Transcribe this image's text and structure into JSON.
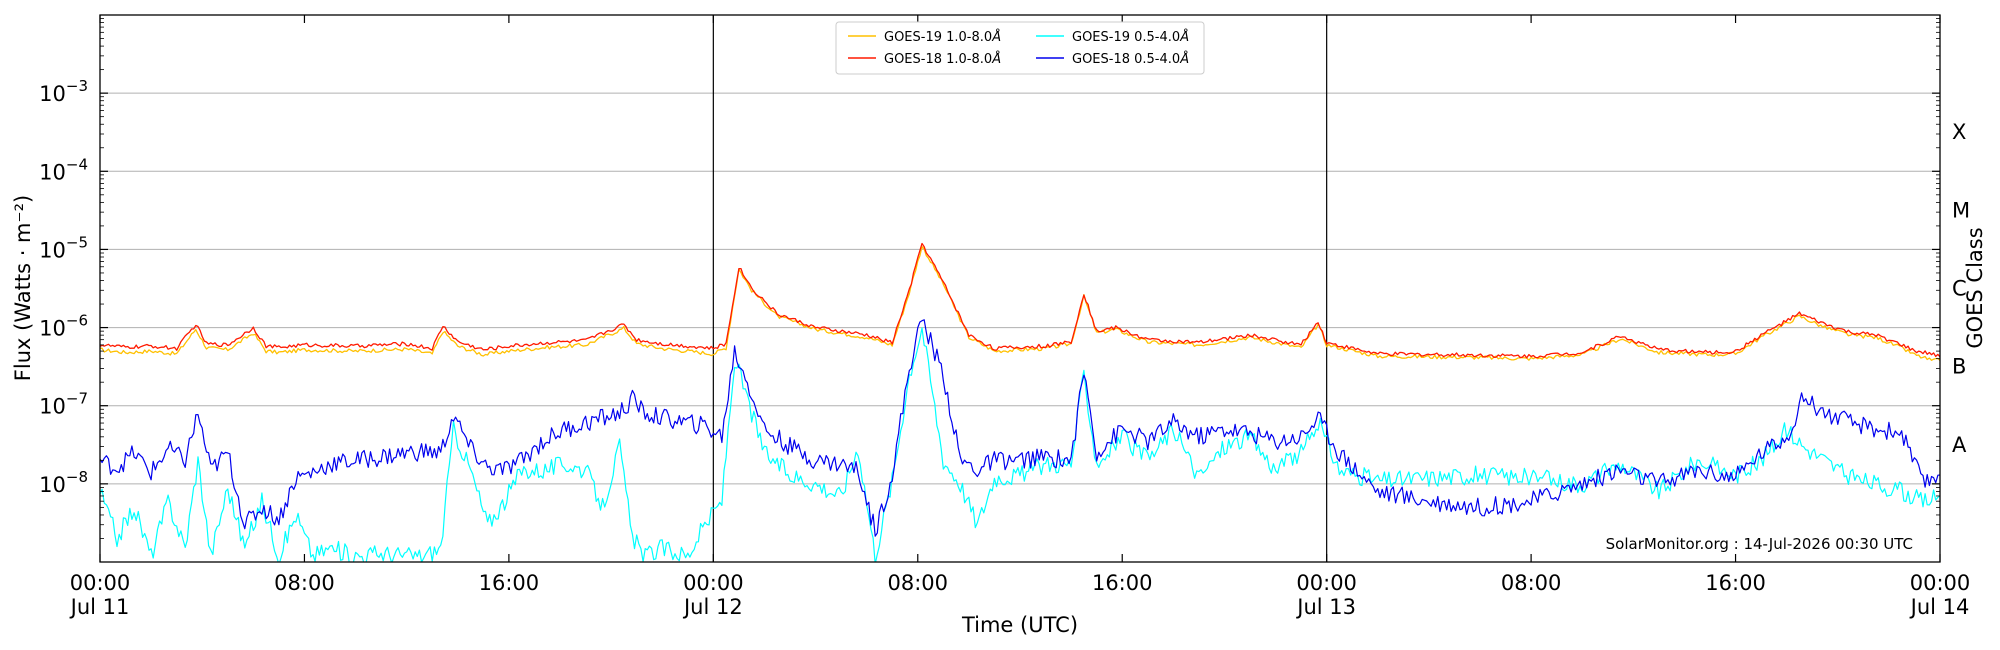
{
  "chart_data": {
    "type": "line",
    "title": "",
    "xlabel": "Time (UTC)",
    "ylabel": "Flux (Watts · m⁻²)",
    "ylabel_right": "GOES Class",
    "yscale": "log",
    "xlim": [
      "2026-07-11 00:00",
      "2026-07-14 00:00"
    ],
    "ylim": [
      1e-09,
      0.01
    ],
    "grid": "horizontal",
    "legend_position": "top-center",
    "annotation": "SolarMonitor.org : 14-Jul-2026 00:30 UTC",
    "y_ticks": [
      {
        "value": 1e-08,
        "mantissa": "10",
        "exp": "−8"
      },
      {
        "value": 1e-07,
        "mantissa": "10",
        "exp": "−7"
      },
      {
        "value": 1e-06,
        "mantissa": "10",
        "exp": "−6"
      },
      {
        "value": 1e-05,
        "mantissa": "10",
        "exp": "−5"
      },
      {
        "value": 0.0001,
        "mantissa": "10",
        "exp": "−4"
      },
      {
        "value": 0.001,
        "mantissa": "10",
        "exp": "−3"
      }
    ],
    "x_ticks": [
      {
        "value": "2026-07-11 00:00",
        "label": "00:00",
        "sublabel": "Jul 11"
      },
      {
        "value": "2026-07-11 08:00",
        "label": "08:00",
        "sublabel": ""
      },
      {
        "value": "2026-07-11 16:00",
        "label": "16:00",
        "sublabel": ""
      },
      {
        "value": "2026-07-12 00:00",
        "label": "00:00",
        "sublabel": "Jul 12"
      },
      {
        "value": "2026-07-12 08:00",
        "label": "08:00",
        "sublabel": ""
      },
      {
        "value": "2026-07-12 16:00",
        "label": "16:00",
        "sublabel": ""
      },
      {
        "value": "2026-07-13 00:00",
        "label": "00:00",
        "sublabel": "Jul 13"
      },
      {
        "value": "2026-07-13 08:00",
        "label": "08:00",
        "sublabel": ""
      },
      {
        "value": "2026-07-13 16:00",
        "label": "16:00",
        "sublabel": ""
      },
      {
        "value": "2026-07-14 00:00",
        "label": "00:00",
        "sublabel": "Jul 14"
      }
    ],
    "day_lines": [
      "2026-07-12 00:00",
      "2026-07-13 00:00"
    ],
    "goes_classes": [
      {
        "label": "A",
        "min": 1e-08
      },
      {
        "label": "B",
        "min": 1e-07
      },
      {
        "label": "C",
        "min": 1e-06
      },
      {
        "label": "M",
        "min": 1e-05
      },
      {
        "label": "X",
        "min": 0.0001
      }
    ],
    "series": [
      {
        "name": "GOES-19 1.0-8.0",
        "suffix": "Å",
        "color": "#ffc000",
        "x": [
          "2026-07-11 00:00",
          "2026-07-11 01:00",
          "2026-07-11 02:00",
          "2026-07-11 03:00",
          "2026-07-11 03:45",
          "2026-07-11 04:10",
          "2026-07-11 05:00",
          "2026-07-11 06:00",
          "2026-07-11 06:30",
          "2026-07-11 07:00",
          "2026-07-11 08:00",
          "2026-07-11 10:00",
          "2026-07-11 12:00",
          "2026-07-11 13:00",
          "2026-07-11 13:25",
          "2026-07-11 14:00",
          "2026-07-11 15:00",
          "2026-07-11 16:00",
          "2026-07-11 17:30",
          "2026-07-11 19:00",
          "2026-07-11 20:30",
          "2026-07-11 21:00",
          "2026-07-11 22:00",
          "2026-07-11 23:00",
          "2026-07-12 00:00",
          "2026-07-12 00:30",
          "2026-07-12 01:00",
          "2026-07-12 01:30",
          "2026-07-12 02:30",
          "2026-07-12 04:00",
          "2026-07-12 06:00",
          "2026-07-12 07:00",
          "2026-07-12 07:40",
          "2026-07-12 08:10",
          "2026-07-12 09:00",
          "2026-07-12 10:00",
          "2026-07-12 11:00",
          "2026-07-12 13:00",
          "2026-07-12 14:00",
          "2026-07-12 14:30",
          "2026-07-12 15:00",
          "2026-07-12 15:45",
          "2026-07-12 17:00",
          "2026-07-12 19:00",
          "2026-07-12 21:00",
          "2026-07-12 23:00",
          "2026-07-12 23:40",
          "2026-07-13 00:00",
          "2026-07-13 02:00",
          "2026-07-13 05:00",
          "2026-07-13 08:00",
          "2026-07-13 10:00",
          "2026-07-13 11:30",
          "2026-07-13 13:00",
          "2026-07-13 15:00",
          "2026-07-13 16:00",
          "2026-07-13 17:00",
          "2026-07-13 18:30",
          "2026-07-13 19:30",
          "2026-07-13 20:30",
          "2026-07-13 21:30",
          "2026-07-13 22:30",
          "2026-07-13 23:00",
          "2026-07-13 23:40",
          "2026-07-14 00:00"
        ],
        "y": [
          5.2e-07,
          4.8e-07,
          5e-07,
          4.6e-07,
          9.5e-07,
          5.5e-07,
          5.2e-07,
          8.5e-07,
          5e-07,
          4.8e-07,
          5.2e-07,
          5e-07,
          5.3e-07,
          4.6e-07,
          9e-07,
          5.8e-07,
          4.5e-07,
          5e-07,
          5.6e-07,
          6e-07,
          9.8e-07,
          6.2e-07,
          5.4e-07,
          5e-07,
          4.6e-07,
          5.5e-07,
          5.6e-06,
          3e-06,
          1.4e-06,
          9.5e-07,
          7.5e-07,
          6e-07,
          2.8e-06,
          1.1e-05,
          3.6e-06,
          7.5e-07,
          5e-07,
          5.4e-07,
          6.2e-07,
          2.5e-06,
          8.5e-07,
          9.5e-07,
          6.5e-07,
          6e-07,
          7.5e-07,
          5.5e-07,
          1.1e-06,
          6e-07,
          4.3e-07,
          4.2e-07,
          4e-07,
          4.5e-07,
          7.2e-07,
          4.8e-07,
          4.5e-07,
          4.6e-07,
          7.5e-07,
          1.4e-06,
          1e-06,
          8e-07,
          7.5e-07,
          5.5e-07,
          4.5e-07,
          3.8e-07,
          3.8e-07
        ]
      },
      {
        "name": "GOES-18 1.0-8.0",
        "suffix": "Å",
        "color": "#ff1a00",
        "x": [
          "2026-07-11 00:00",
          "2026-07-11 01:00",
          "2026-07-11 02:00",
          "2026-07-11 03:00",
          "2026-07-11 03:45",
          "2026-07-11 04:10",
          "2026-07-11 05:00",
          "2026-07-11 06:00",
          "2026-07-11 06:30",
          "2026-07-11 07:00",
          "2026-07-11 08:00",
          "2026-07-11 10:00",
          "2026-07-11 12:00",
          "2026-07-11 13:00",
          "2026-07-11 13:25",
          "2026-07-11 14:00",
          "2026-07-11 15:00",
          "2026-07-11 16:00",
          "2026-07-11 17:30",
          "2026-07-11 19:00",
          "2026-07-11 20:30",
          "2026-07-11 21:00",
          "2026-07-11 22:00",
          "2026-07-11 23:00",
          "2026-07-12 00:00",
          "2026-07-12 00:30",
          "2026-07-12 01:00",
          "2026-07-12 01:30",
          "2026-07-12 02:30",
          "2026-07-12 04:00",
          "2026-07-12 06:00",
          "2026-07-12 07:00",
          "2026-07-12 07:40",
          "2026-07-12 08:10",
          "2026-07-12 09:00",
          "2026-07-12 10:00",
          "2026-07-12 11:00",
          "2026-07-12 13:00",
          "2026-07-12 14:00",
          "2026-07-12 14:30",
          "2026-07-12 15:00",
          "2026-07-12 15:45",
          "2026-07-12 17:00",
          "2026-07-12 19:00",
          "2026-07-12 21:00",
          "2026-07-12 23:00",
          "2026-07-12 23:40",
          "2026-07-13 00:00",
          "2026-07-13 02:00",
          "2026-07-13 05:00",
          "2026-07-13 08:00",
          "2026-07-13 10:00",
          "2026-07-13 11:30",
          "2026-07-13 13:00",
          "2026-07-13 15:00",
          "2026-07-13 16:00",
          "2026-07-13 17:00",
          "2026-07-13 18:30",
          "2026-07-13 19:30",
          "2026-07-13 20:30",
          "2026-07-13 21:30",
          "2026-07-13 22:30",
          "2026-07-13 23:00",
          "2026-07-13 23:40",
          "2026-07-14 00:00"
        ],
        "y": [
          6e-07,
          5.6e-07,
          5.8e-07,
          5.4e-07,
          1.1e-06,
          6.2e-07,
          6e-07,
          1e-06,
          5.8e-07,
          5.6e-07,
          6e-07,
          5.8e-07,
          6.2e-07,
          5.4e-07,
          1.05e-06,
          6.6e-07,
          5.2e-07,
          5.8e-07,
          6.4e-07,
          6.8e-07,
          1.1e-06,
          7e-07,
          6.2e-07,
          5.8e-07,
          5.4e-07,
          6.2e-07,
          6e-06,
          3.2e-06,
          1.5e-06,
          1e-06,
          8e-07,
          6.4e-07,
          3e-06,
          1.2e-05,
          3.8e-06,
          8e-07,
          5.4e-07,
          5.8e-07,
          6.6e-07,
          2.7e-06,
          9e-07,
          1e-06,
          7e-07,
          6.4e-07,
          8e-07,
          6e-07,
          1.2e-06,
          6.4e-07,
          4.6e-07,
          4.5e-07,
          4.3e-07,
          4.8e-07,
          7.8e-07,
          5.2e-07,
          4.8e-07,
          4.9e-07,
          8e-07,
          1.5e-06,
          1.1e-06,
          8.6e-07,
          8e-07,
          6e-07,
          5e-07,
          4.6e-07,
          4.2e-07
        ]
      },
      {
        "name": "GOES-19 0.5-4.0",
        "suffix": "Å",
        "color": "#00ffff",
        "x": [
          "2026-07-11 00:00",
          "2026-07-11 00:40",
          "2026-07-11 01:20",
          "2026-07-11 02:00",
          "2026-07-11 02:40",
          "2026-07-11 03:20",
          "2026-07-11 03:50",
          "2026-07-11 04:20",
          "2026-07-11 05:00",
          "2026-07-11 05:40",
          "2026-07-11 06:20",
          "2026-07-11 07:00",
          "2026-07-11 07:40",
          "2026-07-11 08:20",
          "2026-07-11 09:00",
          "2026-07-11 10:00",
          "2026-07-11 11:00",
          "2026-07-11 12:00",
          "2026-07-11 12:40",
          "2026-07-11 13:20",
          "2026-07-11 13:50",
          "2026-07-11 14:30",
          "2026-07-11 15:10",
          "2026-07-11 15:50",
          "2026-07-11 16:30",
          "2026-07-11 17:20",
          "2026-07-11 18:10",
          "2026-07-11 19:00",
          "2026-07-11 19:40",
          "2026-07-11 20:20",
          "2026-07-11 20:50",
          "2026-07-11 21:20",
          "2026-07-11 22:00",
          "2026-07-11 23:00",
          "2026-07-11 23:40",
          "2026-07-12 00:20",
          "2026-07-12 00:50",
          "2026-07-12 01:20",
          "2026-07-12 02:00",
          "2026-07-12 03:00",
          "2026-07-12 04:00",
          "2026-07-12 05:00",
          "2026-07-12 05:40",
          "2026-07-12 06:20",
          "2026-07-12 07:00",
          "2026-07-12 07:40",
          "2026-07-12 08:10",
          "2026-07-12 09:00",
          "2026-07-12 09:40",
          "2026-07-12 10:20",
          "2026-07-12 11:00",
          "2026-07-12 12:00",
          "2026-07-12 13:00",
          "2026-07-12 14:00",
          "2026-07-12 14:30",
          "2026-07-12 15:00",
          "2026-07-12 16:00",
          "2026-07-12 17:00",
          "2026-07-12 18:00",
          "2026-07-12 19:00",
          "2026-07-12 20:00",
          "2026-07-12 21:00",
          "2026-07-12 22:00",
          "2026-07-12 23:00",
          "2026-07-12 23:40",
          "2026-07-13 00:30",
          "2026-07-13 02:00",
          "2026-07-13 04:00",
          "2026-07-13 06:00",
          "2026-07-13 08:00",
          "2026-07-13 10:00",
          "2026-07-13 11:30",
          "2026-07-13 13:00",
          "2026-07-13 14:30",
          "2026-07-13 16:00",
          "2026-07-13 17:00",
          "2026-07-13 18:00",
          "2026-07-13 18:40",
          "2026-07-13 19:30",
          "2026-07-13 20:30",
          "2026-07-13 21:30",
          "2026-07-13 22:30",
          "2026-07-13 23:20",
          "2026-07-14 00:00"
        ],
        "y": [
          8e-09,
          2e-09,
          5e-09,
          1.2e-09,
          6e-09,
          1.5e-09,
          2e-08,
          1.2e-09,
          9e-09,
          1.5e-09,
          6e-09,
          1.2e-09,
          4e-09,
          1.2e-09,
          1.5e-09,
          1.2e-09,
          1.3e-09,
          1.2e-09,
          1.2e-09,
          1.5e-09,
          5e-08,
          1.5e-08,
          3e-09,
          6e-09,
          1.5e-08,
          1.5e-08,
          1.8e-08,
          1.5e-08,
          5e-09,
          3e-08,
          2e-09,
          1.2e-09,
          1.5e-09,
          1.2e-09,
          3e-09,
          6e-09,
          4e-07,
          1.2e-07,
          2.5e-08,
          1.3e-08,
          1e-08,
          7e-09,
          3e-08,
          1.2e-09,
          1.1e-08,
          2.5e-07,
          1e-06,
          2e-08,
          1e-08,
          3e-09,
          1.2e-08,
          1.3e-08,
          1.8e-08,
          1.8e-08,
          2.5e-07,
          1.8e-08,
          4e-08,
          2e-08,
          5e-08,
          1.2e-08,
          3e-08,
          4e-08,
          1.5e-08,
          2.5e-08,
          6e-08,
          1.5e-08,
          1.1e-08,
          1.2e-08,
          1.3e-08,
          1.2e-08,
          1e-08,
          1.8e-08,
          8e-09,
          2e-08,
          1.3e-08,
          2e-08,
          5e-08,
          3e-08,
          2e-08,
          1.2e-08,
          1e-08,
          8e-09,
          6e-09,
          7e-09
        ]
      },
      {
        "name": "GOES-18 0.5-4.0",
        "suffix": "Å",
        "color": "#0000ee",
        "x": [
          "2026-07-11 00:00",
          "2026-07-11 00:40",
          "2026-07-11 01:20",
          "2026-07-11 02:00",
          "2026-07-11 02:40",
          "2026-07-11 03:20",
          "2026-07-11 03:50",
          "2026-07-11 04:20",
          "2026-07-11 05:00",
          "2026-07-11 05:40",
          "2026-07-11 06:20",
          "2026-07-11 07:00",
          "2026-07-11 07:40",
          "2026-07-11 08:20",
          "2026-07-11 09:00",
          "2026-07-11 10:00",
          "2026-07-11 11:00",
          "2026-07-11 12:00",
          "2026-07-11 12:40",
          "2026-07-11 13:20",
          "2026-07-11 13:50",
          "2026-07-11 14:30",
          "2026-07-11 15:10",
          "2026-07-11 15:50",
          "2026-07-11 16:30",
          "2026-07-11 17:20",
          "2026-07-11 18:10",
          "2026-07-11 19:00",
          "2026-07-11 19:40",
          "2026-07-11 20:20",
          "2026-07-11 20:50",
          "2026-07-11 21:20",
          "2026-07-11 22:00",
          "2026-07-11 23:00",
          "2026-07-11 23:40",
          "2026-07-12 00:20",
          "2026-07-12 00:50",
          "2026-07-12 01:20",
          "2026-07-12 02:00",
          "2026-07-12 03:00",
          "2026-07-12 04:00",
          "2026-07-12 05:00",
          "2026-07-12 05:40",
          "2026-07-12 06:20",
          "2026-07-12 07:00",
          "2026-07-12 07:40",
          "2026-07-12 08:10",
          "2026-07-12 09:00",
          "2026-07-12 09:40",
          "2026-07-12 10:20",
          "2026-07-12 11:00",
          "2026-07-12 12:00",
          "2026-07-12 13:00",
          "2026-07-12 14:00",
          "2026-07-12 14:30",
          "2026-07-12 15:00",
          "2026-07-12 16:00",
          "2026-07-12 17:00",
          "2026-07-12 18:00",
          "2026-07-12 19:00",
          "2026-07-12 20:00",
          "2026-07-12 21:00",
          "2026-07-12 22:00",
          "2026-07-12 23:00",
          "2026-07-12 23:40",
          "2026-07-13 00:30",
          "2026-07-13 02:00",
          "2026-07-13 04:00",
          "2026-07-13 06:00",
          "2026-07-13 08:00",
          "2026-07-13 10:00",
          "2026-07-13 11:30",
          "2026-07-13 13:00",
          "2026-07-13 14:30",
          "2026-07-13 16:00",
          "2026-07-13 17:00",
          "2026-07-13 18:00",
          "2026-07-13 18:40",
          "2026-07-13 19:30",
          "2026-07-13 20:30",
          "2026-07-13 21:30",
          "2026-07-13 22:30",
          "2026-07-13 23:20",
          "2026-07-14 00:00"
        ],
        "y": [
          2e-08,
          1.6e-08,
          2.5e-08,
          1.4e-08,
          2.8e-08,
          2e-08,
          8e-08,
          1.5e-08,
          2.5e-08,
          3e-09,
          5e-09,
          3.5e-09,
          1.2e-08,
          1.4e-08,
          1.8e-08,
          2e-08,
          2.2e-08,
          2.5e-08,
          2.6e-08,
          2.5e-08,
          7.5e-08,
          2.8e-08,
          1.6e-08,
          1.5e-08,
          2e-08,
          3.5e-08,
          5e-08,
          6e-08,
          7e-08,
          8e-08,
          1.2e-07,
          8e-08,
          7e-08,
          6e-08,
          5.5e-08,
          4e-08,
          5e-07,
          2e-07,
          5e-08,
          3e-08,
          2e-08,
          1.8e-08,
          1.5e-08,
          2.5e-09,
          1.3e-08,
          3e-07,
          1.3e-06,
          2.5e-07,
          2e-08,
          1.5e-08,
          2e-08,
          2e-08,
          2.2e-08,
          2e-08,
          2.8e-07,
          2.5e-08,
          5e-08,
          3.5e-08,
          6e-08,
          4e-08,
          5e-08,
          4.5e-08,
          3.5e-08,
          4e-08,
          7e-08,
          2.5e-08,
          8e-09,
          6e-09,
          5e-09,
          6e-09,
          1e-08,
          1.5e-08,
          1e-08,
          1.5e-08,
          1.2e-08,
          2.5e-08,
          4e-08,
          1.3e-07,
          8e-08,
          6e-08,
          5e-08,
          4.5e-08,
          1e-08,
          1.3e-08
        ]
      }
    ]
  }
}
